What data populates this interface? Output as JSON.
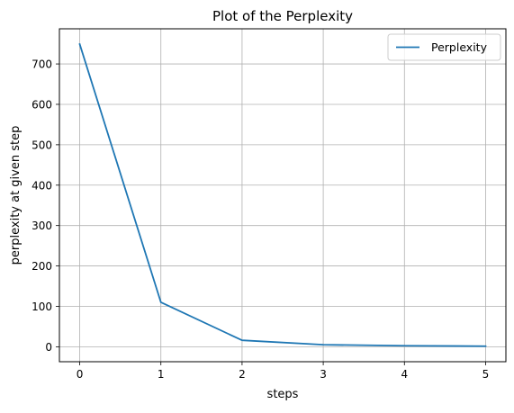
{
  "chart_data": {
    "type": "line",
    "title": "Plot of the Perplexity",
    "xlabel": "steps",
    "ylabel": "perplexity at given step",
    "x": [
      0,
      1,
      2,
      3,
      4,
      5
    ],
    "series": [
      {
        "name": "Perplexity",
        "values": [
          749,
          110,
          16,
          5,
          2.5,
          1.5
        ],
        "color": "#1f77b4"
      }
    ],
    "xlim": [
      -0.25,
      5.25
    ],
    "ylim": [
      -37,
      787
    ],
    "xticks": [
      0,
      1,
      2,
      3,
      4,
      5
    ],
    "yticks": [
      0,
      100,
      200,
      300,
      400,
      500,
      600,
      700
    ],
    "grid": true,
    "legend_position": "top-right"
  }
}
